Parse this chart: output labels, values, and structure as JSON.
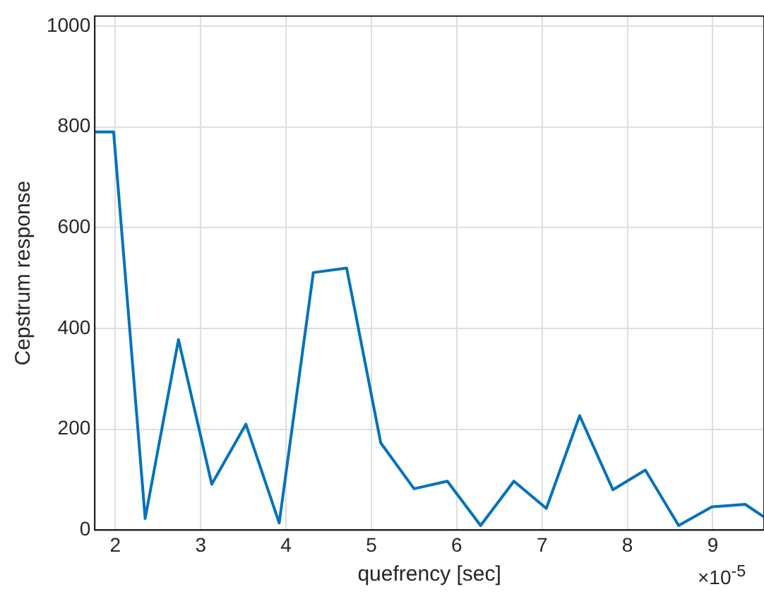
{
  "chart_data": {
    "type": "line",
    "xlabel": "quefrency [sec]",
    "ylabel": "Cepstrum response",
    "annotations": [
      "×10$^{-5}$"
    ],
    "x": [
      1.76,
      1.98,
      2.35,
      2.74,
      3.13,
      3.53,
      3.92,
      4.32,
      4.71,
      5.11,
      5.5,
      5.89,
      6.28,
      6.67,
      7.05,
      7.44,
      7.83,
      8.21,
      8.6,
      8.99,
      9.38,
      9.6
    ],
    "series": [
      {
        "color": "#0072bd",
        "values": [
          790,
          790,
          23,
          378,
          91,
          210,
          14,
          511,
          520,
          173,
          82,
          97,
          9,
          97,
          43,
          227,
          80,
          119,
          9,
          46,
          51,
          26
        ]
      }
    ],
    "xlim": [
      1.76,
      9.6
    ],
    "ylim": [
      0,
      1020
    ],
    "xticks": [
      2,
      3,
      4,
      5,
      6,
      7,
      8,
      9
    ],
    "yticks": [
      0,
      200,
      400,
      600,
      800,
      1000
    ],
    "grid": true,
    "legend": false,
    "marker": "none",
    "line_style": "solid"
  }
}
